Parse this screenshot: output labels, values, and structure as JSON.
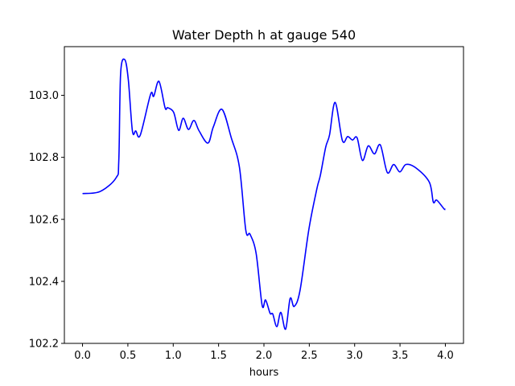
{
  "chart_data": {
    "type": "line",
    "title": "Water Depth h at gauge 540",
    "xlabel": "hours",
    "ylabel": "",
    "xlim": [
      -0.2,
      4.2
    ],
    "ylim": [
      102.2,
      103.157
    ],
    "xticks": [
      0.0,
      0.5,
      1.0,
      1.5,
      2.0,
      2.5,
      3.0,
      3.5,
      4.0
    ],
    "xtick_labels": [
      "0.0",
      "0.5",
      "1.0",
      "1.5",
      "2.0",
      "2.5",
      "3.0",
      "3.5",
      "4.0"
    ],
    "yticks": [
      102.2,
      102.4,
      102.6,
      102.8,
      103.0
    ],
    "ytick_labels": [
      "102.2",
      "102.4",
      "102.6",
      "102.8",
      "103.0"
    ],
    "grid": false,
    "series": [
      {
        "name": "h",
        "color": "#0000ff",
        "x": [
          0.0,
          0.195,
          0.37,
          0.4,
          0.42,
          0.466,
          0.505,
          0.55,
          0.587,
          0.637,
          0.75,
          0.785,
          0.843,
          0.91,
          0.94,
          1.005,
          1.06,
          1.11,
          1.168,
          1.228,
          1.286,
          1.383,
          1.442,
          1.537,
          1.64,
          1.73,
          1.8,
          1.847,
          1.914,
          1.98,
          2.018,
          2.068,
          2.097,
          2.142,
          2.186,
          2.239,
          2.289,
          2.333,
          2.398,
          2.496,
          2.584,
          2.622,
          2.681,
          2.723,
          2.785,
          2.865,
          2.923,
          2.976,
          3.027,
          3.086,
          3.15,
          3.218,
          3.283,
          3.36,
          3.43,
          3.498,
          3.566,
          3.675,
          3.823,
          3.867,
          3.905,
          3.985,
          4.0
        ],
        "y": [
          102.683,
          102.69,
          102.734,
          102.79,
          103.07,
          103.115,
          103.05,
          102.885,
          102.885,
          102.872,
          103.003,
          102.997,
          103.045,
          102.96,
          102.96,
          102.945,
          102.887,
          102.926,
          102.89,
          102.919,
          102.885,
          102.846,
          102.898,
          102.955,
          102.863,
          102.768,
          102.565,
          102.552,
          102.49,
          102.323,
          102.34,
          102.297,
          102.295,
          102.254,
          102.3,
          102.246,
          102.345,
          102.319,
          102.371,
          102.569,
          102.699,
          102.742,
          102.833,
          102.872,
          102.977,
          102.854,
          102.867,
          102.856,
          102.863,
          102.79,
          102.837,
          102.811,
          102.84,
          102.751,
          102.777,
          102.753,
          102.777,
          102.766,
          102.72,
          102.656,
          102.662,
          102.634,
          102.633
        ]
      }
    ]
  }
}
